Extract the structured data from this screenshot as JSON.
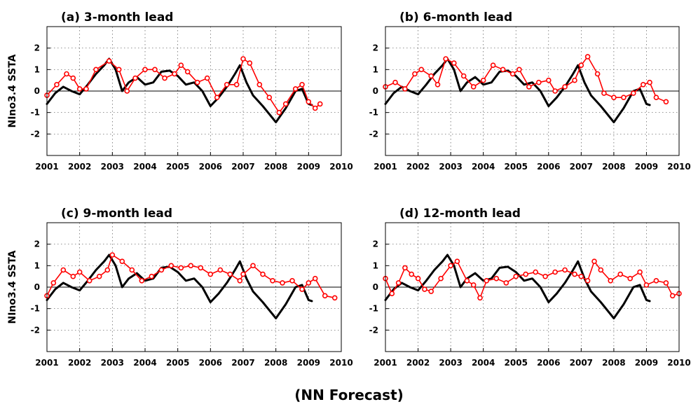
{
  "caption": "(NN Forecast)",
  "colors": {
    "observed": "#000000",
    "forecast": "#ff0000",
    "background": "#ffffff"
  },
  "chart_data": [
    {
      "type": "line",
      "title": "(a) 3-month lead",
      "ylabel": "NIno3.4 SSTA",
      "xlabel": "",
      "xlim": [
        2001,
        2010
      ],
      "ylim": [
        -3,
        3
      ],
      "x_ticks": [
        "2001",
        "2002",
        "2003",
        "2004",
        "2005",
        "2006",
        "2007",
        "2008",
        "2009",
        "2010"
      ],
      "y_ticks": [
        "-2",
        "-1",
        "0",
        "1",
        "2"
      ],
      "grid": true,
      "reference_line": 0,
      "series": [
        {
          "color": "#000000",
          "style": "thick-line",
          "x": [
            2001.0,
            2001.25,
            2001.5,
            2001.75,
            2002.0,
            2002.25,
            2002.5,
            2002.75,
            2002.9,
            2003.1,
            2003.3,
            2003.5,
            2003.75,
            2004.0,
            2004.25,
            2004.5,
            2004.75,
            2005.0,
            2005.25,
            2005.5,
            2005.75,
            2006.0,
            2006.25,
            2006.5,
            2006.75,
            2006.9,
            2007.1,
            2007.3,
            2007.6,
            2008.0,
            2008.3,
            2008.6,
            2008.8,
            2009.0,
            2009.1
          ],
          "y": [
            -0.6,
            -0.1,
            0.2,
            0.0,
            -0.15,
            0.3,
            0.8,
            1.2,
            1.5,
            1.0,
            0.0,
            0.4,
            0.65,
            0.3,
            0.4,
            0.9,
            0.95,
            0.7,
            0.3,
            0.4,
            0.0,
            -0.7,
            -0.3,
            0.2,
            0.8,
            1.2,
            0.4,
            -0.2,
            -0.7,
            -1.45,
            -0.8,
            0.0,
            0.1,
            -0.6,
            -0.65
          ]
        },
        {
          "color": "#ff0000",
          "style": "circles",
          "x": [
            2001.0,
            2001.3,
            2001.6,
            2001.8,
            2002.0,
            2002.2,
            2002.5,
            2002.9,
            2003.2,
            2003.45,
            2003.7,
            2004.0,
            2004.3,
            2004.6,
            2004.9,
            2005.1,
            2005.3,
            2005.6,
            2005.9,
            2006.2,
            2006.5,
            2006.8,
            2007.0,
            2007.2,
            2007.5,
            2007.8,
            2008.1,
            2008.3,
            2008.6,
            2008.8,
            2009.0,
            2009.2,
            2009.35
          ],
          "y": [
            -0.2,
            0.3,
            0.8,
            0.6,
            0.1,
            0.1,
            1.0,
            1.4,
            1.0,
            0.0,
            0.6,
            1.0,
            1.0,
            0.6,
            0.8,
            1.2,
            0.9,
            0.4,
            0.6,
            -0.3,
            0.3,
            0.3,
            1.5,
            1.3,
            0.3,
            -0.3,
            -1.0,
            -0.6,
            0.1,
            0.3,
            -0.5,
            -0.8,
            -0.6
          ]
        }
      ]
    },
    {
      "type": "line",
      "title": "(b) 6-month lead",
      "ylabel": "",
      "xlabel": "",
      "xlim": [
        2001,
        2010
      ],
      "ylim": [
        -3,
        3
      ],
      "x_ticks": [
        "2001",
        "2002",
        "2003",
        "2004",
        "2005",
        "2006",
        "2007",
        "2008",
        "2009",
        "2010"
      ],
      "y_ticks": [
        "-2",
        "-1",
        "0",
        "1",
        "2"
      ],
      "grid": true,
      "reference_line": 0,
      "series": [
        {
          "color": "#000000",
          "style": "thick-line",
          "x": [
            2001.0,
            2001.25,
            2001.5,
            2001.75,
            2002.0,
            2002.25,
            2002.5,
            2002.75,
            2002.9,
            2003.1,
            2003.3,
            2003.5,
            2003.75,
            2004.0,
            2004.25,
            2004.5,
            2004.75,
            2005.0,
            2005.25,
            2005.5,
            2005.75,
            2006.0,
            2006.25,
            2006.5,
            2006.75,
            2006.9,
            2007.1,
            2007.3,
            2007.6,
            2008.0,
            2008.3,
            2008.6,
            2008.8,
            2009.0,
            2009.1
          ],
          "y": [
            -0.6,
            -0.1,
            0.2,
            0.0,
            -0.15,
            0.3,
            0.8,
            1.2,
            1.5,
            1.0,
            0.0,
            0.4,
            0.65,
            0.3,
            0.4,
            0.9,
            0.95,
            0.7,
            0.3,
            0.4,
            0.0,
            -0.7,
            -0.3,
            0.2,
            0.8,
            1.2,
            0.4,
            -0.2,
            -0.7,
            -1.45,
            -0.8,
            0.0,
            0.1,
            -0.6,
            -0.65
          ]
        },
        {
          "color": "#ff0000",
          "style": "circles",
          "x": [
            2001.0,
            2001.3,
            2001.6,
            2001.9,
            2002.1,
            2002.4,
            2002.6,
            2002.85,
            2003.1,
            2003.4,
            2003.7,
            2004.0,
            2004.3,
            2004.6,
            2004.9,
            2005.1,
            2005.4,
            2005.7,
            2006.0,
            2006.2,
            2006.5,
            2006.8,
            2007.0,
            2007.2,
            2007.5,
            2007.7,
            2008.0,
            2008.3,
            2008.6,
            2008.9,
            2009.1,
            2009.3,
            2009.6
          ],
          "y": [
            0.2,
            0.4,
            0.1,
            0.8,
            1.0,
            0.7,
            0.3,
            1.5,
            1.3,
            0.7,
            0.2,
            0.5,
            1.2,
            1.0,
            0.8,
            1.0,
            0.2,
            0.4,
            0.5,
            0.0,
            0.2,
            0.5,
            1.2,
            1.6,
            0.8,
            -0.1,
            -0.3,
            -0.3,
            -0.1,
            0.3,
            0.4,
            -0.3,
            -0.5
          ]
        }
      ]
    },
    {
      "type": "line",
      "title": "(c) 9-month lead",
      "ylabel": "NIno3.4 SSTA",
      "xlabel": "",
      "xlim": [
        2001,
        2010
      ],
      "ylim": [
        -3,
        3
      ],
      "x_ticks": [
        "2001",
        "2002",
        "2003",
        "2004",
        "2005",
        "2006",
        "2007",
        "2008",
        "2009",
        "2010"
      ],
      "y_ticks": [
        "-2",
        "-1",
        "0",
        "1",
        "2"
      ],
      "grid": true,
      "reference_line": 0,
      "series": [
        {
          "color": "#000000",
          "style": "thick-line",
          "x": [
            2001.0,
            2001.25,
            2001.5,
            2001.75,
            2002.0,
            2002.25,
            2002.5,
            2002.75,
            2002.9,
            2003.1,
            2003.3,
            2003.5,
            2003.75,
            2004.0,
            2004.25,
            2004.5,
            2004.75,
            2005.0,
            2005.25,
            2005.5,
            2005.75,
            2006.0,
            2006.25,
            2006.5,
            2006.75,
            2006.9,
            2007.1,
            2007.3,
            2007.6,
            2008.0,
            2008.3,
            2008.6,
            2008.8,
            2009.0,
            2009.1
          ],
          "y": [
            -0.6,
            -0.1,
            0.2,
            0.0,
            -0.15,
            0.3,
            0.8,
            1.2,
            1.5,
            1.0,
            0.0,
            0.4,
            0.65,
            0.3,
            0.4,
            0.9,
            0.95,
            0.7,
            0.3,
            0.4,
            0.0,
            -0.7,
            -0.3,
            0.2,
            0.8,
            1.2,
            0.4,
            -0.2,
            -0.7,
            -1.45,
            -0.8,
            0.0,
            0.1,
            -0.6,
            -0.65
          ]
        },
        {
          "color": "#ff0000",
          "style": "circles",
          "x": [
            2001.0,
            2001.2,
            2001.5,
            2001.8,
            2002.0,
            2002.3,
            2002.6,
            2002.85,
            2003.0,
            2003.3,
            2003.6,
            2003.9,
            2004.2,
            2004.5,
            2004.8,
            2005.1,
            2005.4,
            2005.7,
            2006.0,
            2006.3,
            2006.6,
            2006.9,
            2007.0,
            2007.3,
            2007.6,
            2007.9,
            2008.2,
            2008.5,
            2008.8,
            2009.0,
            2009.2,
            2009.5,
            2009.8
          ],
          "y": [
            -0.4,
            0.2,
            0.8,
            0.5,
            0.7,
            0.3,
            0.5,
            0.8,
            1.5,
            1.2,
            0.8,
            0.3,
            0.5,
            0.8,
            1.0,
            0.9,
            1.0,
            0.9,
            0.6,
            0.8,
            0.6,
            0.3,
            0.6,
            1.0,
            0.6,
            0.3,
            0.2,
            0.3,
            -0.1,
            0.2,
            0.4,
            -0.4,
            -0.5
          ]
        }
      ]
    },
    {
      "type": "line",
      "title": "(d) 12-month lead",
      "ylabel": "",
      "xlabel": "",
      "xlim": [
        2001,
        2010
      ],
      "ylim": [
        -3,
        3
      ],
      "x_ticks": [
        "2001",
        "2002",
        "2003",
        "2004",
        "2005",
        "2006",
        "2007",
        "2008",
        "2009",
        "2010"
      ],
      "y_ticks": [
        "-2",
        "-1",
        "0",
        "1",
        "2"
      ],
      "grid": true,
      "reference_line": 0,
      "series": [
        {
          "color": "#000000",
          "style": "thick-line",
          "x": [
            2001.0,
            2001.25,
            2001.5,
            2001.75,
            2002.0,
            2002.25,
            2002.5,
            2002.75,
            2002.9,
            2003.1,
            2003.3,
            2003.5,
            2003.75,
            2004.0,
            2004.25,
            2004.5,
            2004.75,
            2005.0,
            2005.25,
            2005.5,
            2005.75,
            2006.0,
            2006.25,
            2006.5,
            2006.75,
            2006.9,
            2007.1,
            2007.3,
            2007.6,
            2008.0,
            2008.3,
            2008.6,
            2008.8,
            2009.0,
            2009.1
          ],
          "y": [
            -0.6,
            -0.1,
            0.2,
            0.0,
            -0.15,
            0.3,
            0.8,
            1.2,
            1.5,
            1.0,
            0.0,
            0.4,
            0.65,
            0.3,
            0.4,
            0.9,
            0.95,
            0.7,
            0.3,
            0.4,
            0.0,
            -0.7,
            -0.3,
            0.2,
            0.8,
            1.2,
            0.4,
            -0.2,
            -0.7,
            -1.45,
            -0.8,
            0.0,
            0.1,
            -0.6,
            -0.65
          ]
        },
        {
          "color": "#ff0000",
          "style": "circles",
          "x": [
            2001.0,
            2001.2,
            2001.4,
            2001.6,
            2001.8,
            2002.0,
            2002.2,
            2002.4,
            2002.7,
            2003.0,
            2003.2,
            2003.5,
            2003.7,
            2003.9,
            2004.1,
            2004.4,
            2004.7,
            2005.0,
            2005.3,
            2005.6,
            2005.9,
            2006.2,
            2006.5,
            2006.8,
            2007.0,
            2007.2,
            2007.4,
            2007.6,
            2007.9,
            2008.2,
            2008.5,
            2008.8,
            2009.0,
            2009.3,
            2009.6,
            2009.8,
            2010.0
          ],
          "y": [
            0.4,
            -0.3,
            0.2,
            0.9,
            0.6,
            0.4,
            -0.1,
            -0.2,
            0.4,
            1.0,
            1.2,
            0.3,
            0.1,
            -0.5,
            0.3,
            0.4,
            0.2,
            0.5,
            0.6,
            0.7,
            0.5,
            0.7,
            0.8,
            0.6,
            0.5,
            0.3,
            1.2,
            0.8,
            0.3,
            0.6,
            0.4,
            0.7,
            0.1,
            0.3,
            0.2,
            -0.4,
            -0.3
          ]
        }
      ]
    }
  ]
}
